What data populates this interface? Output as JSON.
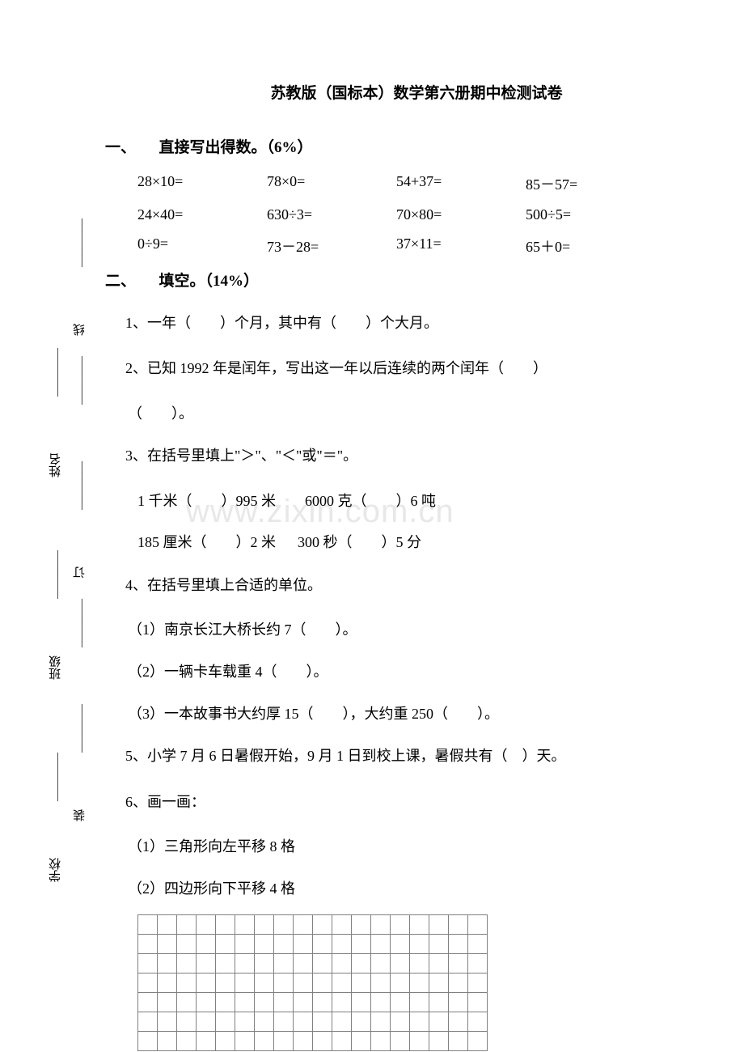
{
  "title": "苏教版（国标本）数学第六册期中检测试卷",
  "watermark": "www.zixin.com.cn",
  "binding": {
    "school": "学校",
    "class": "班级",
    "name": "姓名",
    "zhuang": "装",
    "ding": "订",
    "xian": "线",
    "underline": "________"
  },
  "section1": {
    "header": "一、　　直接写出得数。（6%）",
    "row1": {
      "c1": "28×10=",
      "c2": "78×0=",
      "c3": "54+37=",
      "c4": "85－57="
    },
    "row2": {
      "c1": "24×40=",
      "c2": "630÷3=",
      "c3": "70×80=",
      "c4": "500÷5="
    },
    "row3": {
      "c1": "0÷9=",
      "c2": "73－28=",
      "c3": "37×11=",
      "c4": "65＋0="
    }
  },
  "section2": {
    "header": "二、　　填空。（14%）",
    "q1": "1、一年（　　）个月，其中有（　　）个大月。",
    "q2": "2、已知 1992 年是闰年，写出这一年以后连续的两个闰年（　　）",
    "q2b": "（　　）。",
    "q3": "3、在括号里填上\"＞\"、\"＜\"或\"＝\"。",
    "q3a": " 1 千米（　　）995 米　　6000 克（　　）6 吨",
    "q3b": " 185 厘米（　　）2 米 　 300 秒（　　）5 分",
    "q4": "4、在括号里填上合适的单位。",
    "q4a": "（1）南京长江大桥长约 7（　　）。",
    "q4b": "（2）一辆卡车载重 4（　　）。",
    "q4c": "（3）一本故事书大约厚 15（　　），大约重 250（　　）。",
    "q5": "5、小学 7 月 6 日暑假开始，9 月 1 日到校上课，暑假共有（　）天。",
    "q6": "6、画一画：",
    "q6a": "（1）三角形向左平移 8 格",
    "q6b": "（2）四边形向下平移 4 格"
  },
  "grid": {
    "rows": 7,
    "cols": 18,
    "border_color": "#808080",
    "cell_size": 24
  },
  "colors": {
    "text": "#000000",
    "background": "#ffffff",
    "watermark": "#e8e8e8",
    "grid_border": "#808080"
  },
  "fonts": {
    "body": "SimSun",
    "title_size": 19,
    "section_size": 19,
    "body_size": 18
  }
}
